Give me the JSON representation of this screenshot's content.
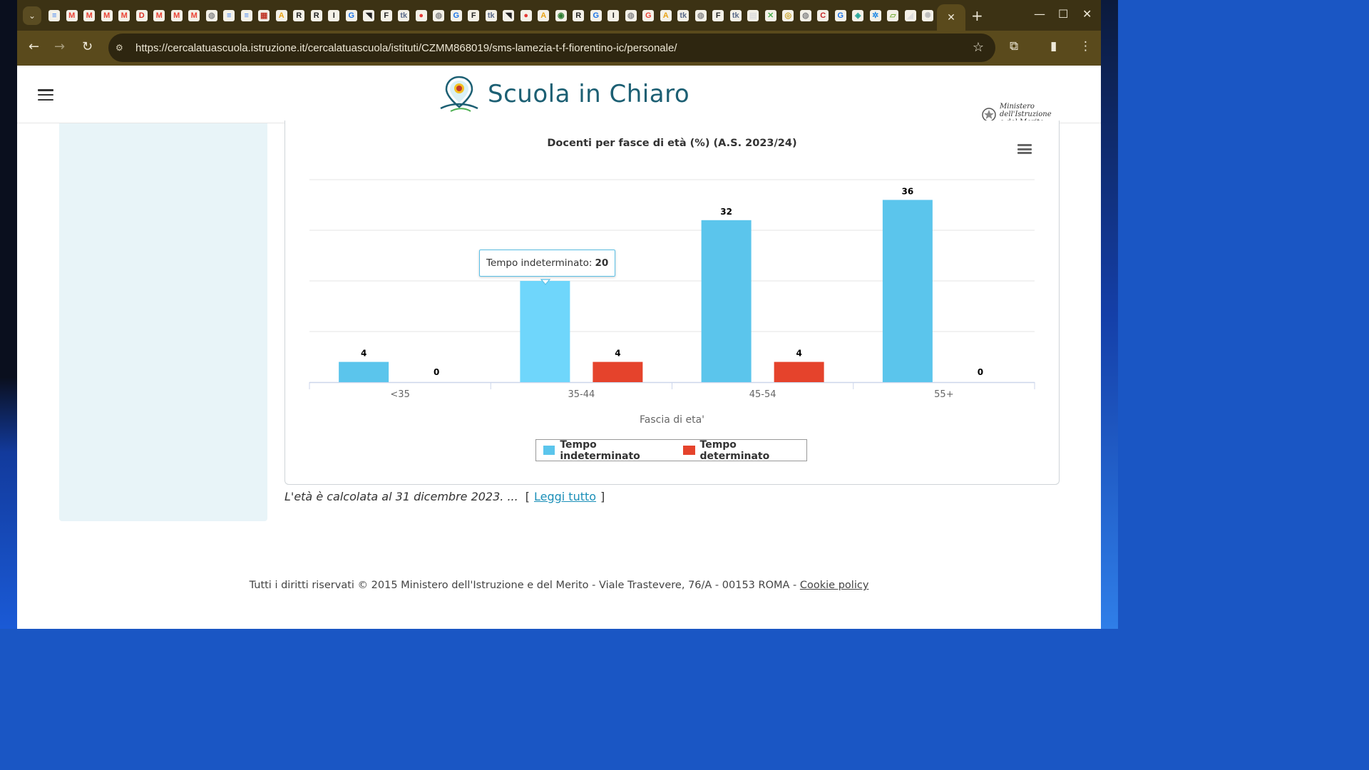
{
  "browser": {
    "url": "https://cercalatuascuola.istruzione.it/cercalatuascuola/istituti/CZMM868019/sms-lamezia-t-f-fiorentino-ic/personale/",
    "active_tab_close": "✕",
    "new_tab": "+",
    "favicons": [
      {
        "glyph": "≡",
        "color": "#4285f4"
      },
      {
        "glyph": "M",
        "color": "#ea4335"
      },
      {
        "glyph": "M",
        "color": "#ea4335"
      },
      {
        "glyph": "M",
        "color": "#ea4335"
      },
      {
        "glyph": "M",
        "color": "#ea4335"
      },
      {
        "glyph": "D",
        "color": "#d93025"
      },
      {
        "glyph": "M",
        "color": "#ea4335"
      },
      {
        "glyph": "M",
        "color": "#ea4335"
      },
      {
        "glyph": "M",
        "color": "#ea4335"
      },
      {
        "glyph": "◍",
        "color": "#8a8a8a"
      },
      {
        "glyph": "≡",
        "color": "#4285f4"
      },
      {
        "glyph": "≡",
        "color": "#4285f4"
      },
      {
        "glyph": "▦",
        "color": "#c0392b"
      },
      {
        "glyph": "A",
        "color": "#e8a317"
      },
      {
        "glyph": "R",
        "color": "#222"
      },
      {
        "glyph": "R",
        "color": "#222"
      },
      {
        "glyph": "I",
        "color": "#222"
      },
      {
        "glyph": "G",
        "color": "#1a73e8"
      },
      {
        "glyph": "◥",
        "color": "#222"
      },
      {
        "glyph": "F",
        "color": "#222"
      },
      {
        "glyph": "tk",
        "color": "#5b6b8a"
      },
      {
        "glyph": "●",
        "color": "#e53935"
      },
      {
        "glyph": "◍",
        "color": "#8a8a8a"
      },
      {
        "glyph": "G",
        "color": "#1a73e8"
      },
      {
        "glyph": "F",
        "color": "#222"
      },
      {
        "glyph": "tk",
        "color": "#5b6b8a"
      },
      {
        "glyph": "◥",
        "color": "#222"
      },
      {
        "glyph": "●",
        "color": "#e53935"
      },
      {
        "glyph": "A",
        "color": "#e8a317"
      },
      {
        "glyph": "◉",
        "color": "#2e7d32"
      },
      {
        "glyph": "R",
        "color": "#222"
      },
      {
        "glyph": "G",
        "color": "#1a73e8"
      },
      {
        "glyph": "I",
        "color": "#222"
      },
      {
        "glyph": "◍",
        "color": "#8a8a8a"
      },
      {
        "glyph": "G",
        "color": "#ea4335"
      },
      {
        "glyph": "A",
        "color": "#e8a317"
      },
      {
        "glyph": "tk",
        "color": "#5b6b8a"
      },
      {
        "glyph": "◍",
        "color": "#8a8a8a"
      },
      {
        "glyph": "F",
        "color": "#222"
      },
      {
        "glyph": "tk",
        "color": "#5b6b8a"
      },
      {
        "glyph": "▤",
        "color": "#ddd"
      },
      {
        "glyph": "✕",
        "color": "#4caf50"
      },
      {
        "glyph": "◎",
        "color": "#c9a227"
      },
      {
        "glyph": "◍",
        "color": "#8a8a8a"
      },
      {
        "glyph": "C",
        "color": "#c62828"
      },
      {
        "glyph": "G",
        "color": "#1a73e8"
      },
      {
        "glyph": "◈",
        "color": "#26a69a"
      },
      {
        "glyph": "✲",
        "color": "#1e88e5"
      },
      {
        "glyph": "▱",
        "color": "#7cb342"
      },
      {
        "glyph": "◢",
        "color": "#ddd"
      },
      {
        "glyph": "✺",
        "color": "#bdbdbd"
      }
    ]
  },
  "header": {
    "site_title": "Scuola in Chiaro",
    "ministry_line1": "Ministero dell'Istruzione",
    "ministry_line2": "e del Merito"
  },
  "chart_data": {
    "type": "bar",
    "title": "Docenti per fasce di età (%) (A.S. 2023/24)",
    "xlabel": "Fascia di eta'",
    "ylabel": "",
    "categories": [
      "<35",
      "35-44",
      "45-54",
      "55+"
    ],
    "series": [
      {
        "name": "Tempo indeterminato",
        "values": [
          4,
          20,
          32,
          36
        ],
        "color": "#5bc5ec",
        "hover_color": "#6fd6fb"
      },
      {
        "name": "Tempo determinato",
        "values": [
          0,
          4,
          4,
          0
        ],
        "color": "#e5432c"
      }
    ],
    "ylim": [
      0,
      40
    ],
    "grid": true,
    "legend": "bottom-center",
    "hovered": {
      "series": 0,
      "category": 1
    }
  },
  "tooltip": {
    "label": "Tempo indeterminato:",
    "value": "20"
  },
  "note": {
    "text": "L'età è calcolata al 31 dicembre 2023. ...",
    "open_bracket": "[",
    "link": "Leggi tutto",
    "close_bracket": "]"
  },
  "footer": {
    "text": "Tutti i diritti riservati © 2015 Ministero dell'Istruzione e del Merito - Viale Trastevere, 76/A - 00153 ROMA -",
    "link": "Cookie policy"
  }
}
